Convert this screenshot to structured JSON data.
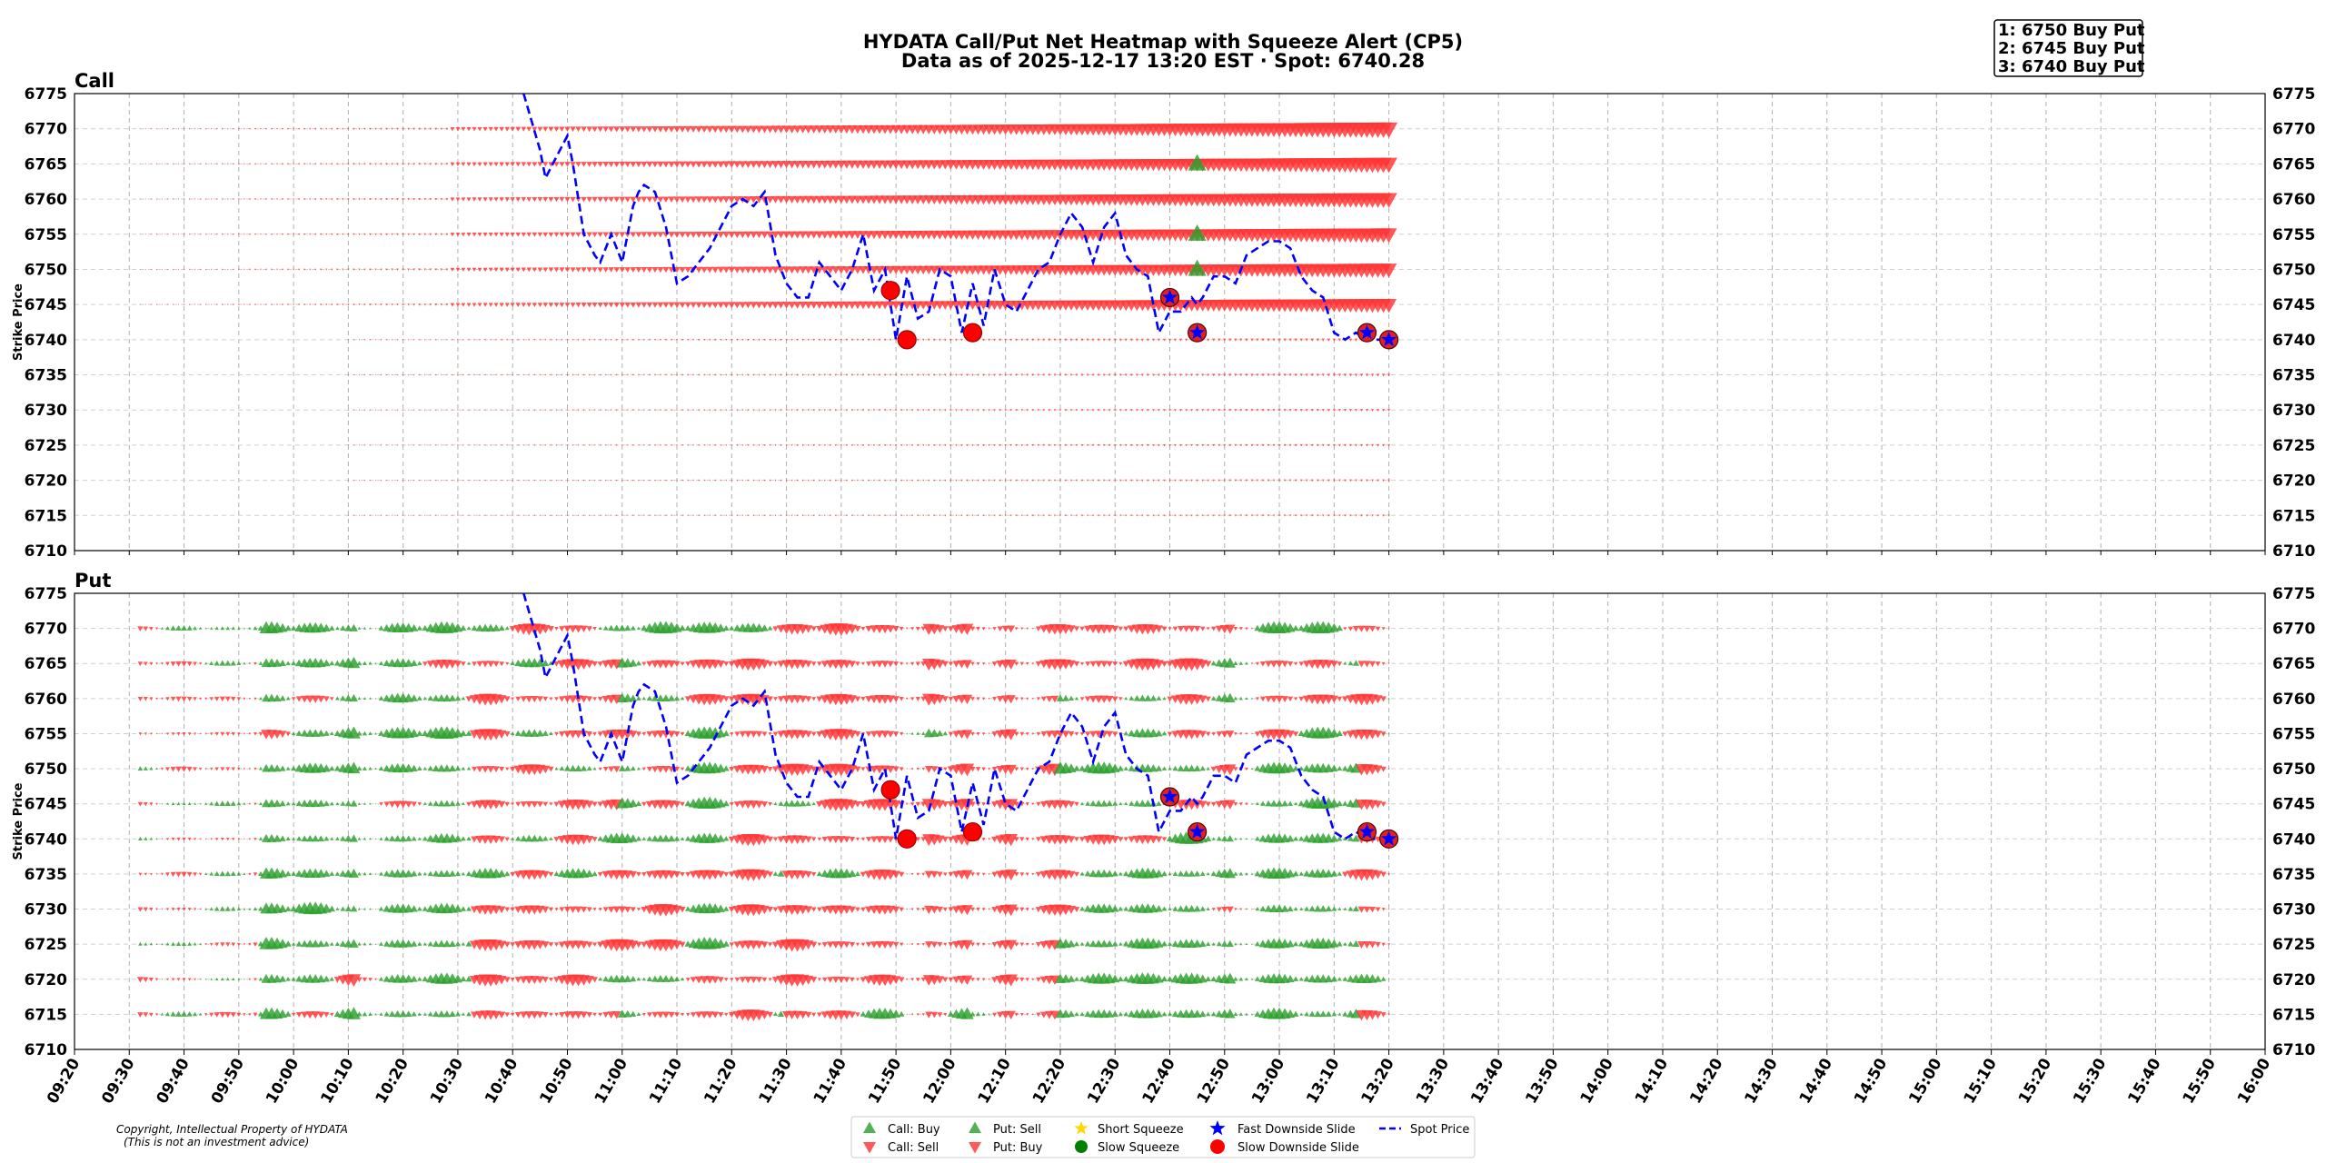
{
  "title_line1": "HYDATA Call/Put Net Heatmap with Squeeze Alert (CP5)",
  "title_line2": "Data as of 2025-12-17 13:20 EST · Spot: 6740.28",
  "alerts": [
    "1: 6750 Buy Put",
    "2: 6745 Buy Put",
    "3: 6740 Buy Put"
  ],
  "copyright_line1": "Copyright, Intellectual Property of HYDATA",
  "copyright_line2": "(This is not an investment advice)",
  "legend": {
    "call_buy": "Call: Buy",
    "call_sell": "Call: Sell",
    "put_sell": "Put: Sell",
    "put_buy": "Put: Buy",
    "short_squeeze": "Short Squeeze",
    "slow_squeeze": "Slow Squeeze",
    "fast_slide": "Fast Downside Slide",
    "slow_slide": "Slow Downside Slide",
    "spot_price": "Spot Price"
  },
  "colors": {
    "buy_green": "#2ca02c",
    "sell_red": "#ff3333",
    "spot_line": "#0000ff",
    "squeeze_gold": "#ffd700",
    "slow_squeeze_green": "#008000",
    "fast_slide_blue": "#0000ff",
    "slow_slide_red": "#ff0000"
  },
  "chart_data": [
    {
      "type": "scatter",
      "panel": "Call",
      "title": "Call",
      "ylabel": "Strike Price",
      "ylim": [
        6710,
        6775
      ],
      "yticks": [
        "6775",
        "6770",
        "6765",
        "6760",
        "6755",
        "6750",
        "6745",
        "6740",
        "6735",
        "6730",
        "6725",
        "6720",
        "6715",
        "6710"
      ],
      "xlim": [
        "09:20",
        "16:00"
      ],
      "grid": true,
      "description": "Net call flow markers per strike (red down-triangles = Call: Sell) growing toward 13:20; green up-triangles at 6765, 6755, 6750 at 12:45"
    },
    {
      "type": "scatter",
      "panel": "Put",
      "title": "Put",
      "ylabel": "Strike Price",
      "ylim": [
        6710,
        6775
      ],
      "yticks": [
        "6775",
        "6770",
        "6765",
        "6760",
        "6755",
        "6750",
        "6745",
        "6740",
        "6735",
        "6730",
        "6725",
        "6720",
        "6715",
        "6710"
      ],
      "xlim": [
        "09:20",
        "16:00"
      ],
      "grid": true,
      "description": "Net put flow markers per strike (green up = Put: Sell, red down = Put: Buy)"
    }
  ],
  "xticks": [
    "09:20",
    "09:30",
    "09:40",
    "09:50",
    "10:00",
    "10:10",
    "10:20",
    "10:30",
    "10:40",
    "10:50",
    "11:00",
    "11:10",
    "11:20",
    "11:30",
    "11:40",
    "11:50",
    "12:00",
    "12:10",
    "12:20",
    "12:30",
    "12:40",
    "12:50",
    "13:00",
    "13:10",
    "13:20",
    "13:30",
    "13:40",
    "13:50",
    "14:00",
    "14:10",
    "14:20",
    "14:30",
    "14:40",
    "14:50",
    "15:00",
    "15:10",
    "15:20",
    "15:30",
    "15:40",
    "15:50",
    "16:00"
  ],
  "spot_series": {
    "times": [
      "10:42",
      "10:45",
      "10:46",
      "10:48",
      "10:50",
      "10:51",
      "10:53",
      "10:55",
      "10:56",
      "10:58",
      "11:00",
      "11:02",
      "11:03",
      "11:04",
      "11:06",
      "11:08",
      "11:10",
      "11:12",
      "11:14",
      "11:16",
      "11:18",
      "11:20",
      "11:22",
      "11:24",
      "11:26",
      "11:28",
      "11:30",
      "11:32",
      "11:34",
      "11:36",
      "11:38",
      "11:40",
      "11:42",
      "11:44",
      "11:46",
      "11:48",
      "11:50",
      "11:52",
      "11:54",
      "11:56",
      "11:58",
      "12:00",
      "12:02",
      "12:04",
      "12:06",
      "12:08",
      "12:10",
      "12:12",
      "12:14",
      "12:16",
      "12:18",
      "12:20",
      "12:22",
      "12:24",
      "12:26",
      "12:28",
      "12:30",
      "12:32",
      "12:34",
      "12:36",
      "12:38",
      "12:40",
      "12:42",
      "12:44",
      "12:45",
      "12:46",
      "12:48",
      "12:50",
      "12:52",
      "12:54",
      "12:56",
      "12:58",
      "13:00",
      "13:02",
      "13:04",
      "13:06",
      "13:08",
      "13:10",
      "13:12",
      "13:14",
      "13:16",
      "13:18",
      "13:20"
    ],
    "values": [
      6775,
      6767,
      6763,
      6766,
      6769,
      6765,
      6755,
      6752,
      6751,
      6755,
      6751,
      6759,
      6761,
      6762,
      6761,
      6756,
      6748,
      6749,
      6751,
      6753,
      6756,
      6759,
      6760,
      6759,
      6761,
      6752,
      6748,
      6746,
      6746,
      6751,
      6749,
      6747,
      6750,
      6755,
      6747,
      6750,
      6740,
      6749,
      6743,
      6744,
      6750,
      6749,
      6741,
      6748,
      6742,
      6750,
      6745,
      6744,
      6747,
      6750,
      6751,
      6755,
      6758,
      6756,
      6751,
      6756,
      6758,
      6752,
      6750,
      6749,
      6741,
      6744,
      6744,
      6746,
      6745,
      6746,
      6749,
      6749,
      6748,
      6752,
      6753,
      6754,
      6754,
      6753,
      6749,
      6747,
      6746,
      6741,
      6740,
      6741,
      6740,
      6740,
      6740
    ]
  },
  "alert_markers": [
    {
      "type": "slow_slide",
      "time": "11:49",
      "strike": 6747
    },
    {
      "type": "slow_slide",
      "time": "11:52",
      "strike": 6740
    },
    {
      "type": "slow_slide",
      "time": "12:04",
      "strike": 6741
    },
    {
      "type": "fast_slide",
      "time": "12:40",
      "strike": 6746
    },
    {
      "type": "fast_slide",
      "time": "12:45",
      "strike": 6741
    },
    {
      "type": "fast_slide",
      "time": "13:16",
      "strike": 6741
    },
    {
      "type": "fast_slide",
      "time": "13:20",
      "strike": 6740
    }
  ]
}
